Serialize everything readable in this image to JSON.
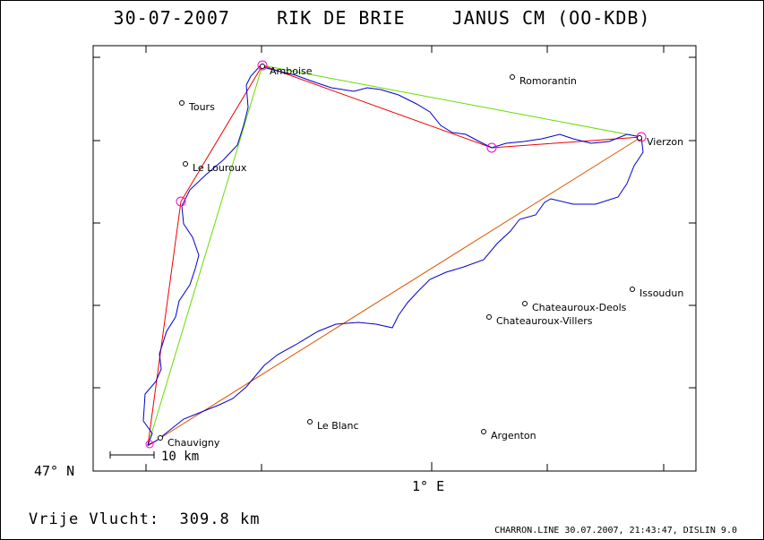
{
  "header": {
    "date": "30-07-2007",
    "pilot": "RIK DE BRIE",
    "glider": "JANUS CM (OO-KDB)"
  },
  "axes": {
    "lat_label": "47° N",
    "lon_label": "1° E"
  },
  "scale_bar": {
    "label": "10 km"
  },
  "places": [
    {
      "name": "Amboise"
    },
    {
      "name": "Romorantin"
    },
    {
      "name": "Tours"
    },
    {
      "name": "Le Louroux"
    },
    {
      "name": "Vierzon"
    },
    {
      "name": "Issoudun"
    },
    {
      "name": "Chateauroux-Deols"
    },
    {
      "name": "Chateauroux-Villers"
    },
    {
      "name": "Le Blanc"
    },
    {
      "name": "Argenton"
    },
    {
      "name": "Chauvigny"
    }
  ],
  "colors": {
    "track": "#0000cc",
    "task_red": "#ee0000",
    "task_green": "#66dd00",
    "task_orange": "#dd5500",
    "turnpoint": "#ff00cc"
  },
  "footer": {
    "distance_label": "Vrije Vlucht:",
    "distance_value": "309.8 km",
    "info": "CHARRON.LINE 30.07.2007, 21:43:47, DISLIN 9.0"
  }
}
